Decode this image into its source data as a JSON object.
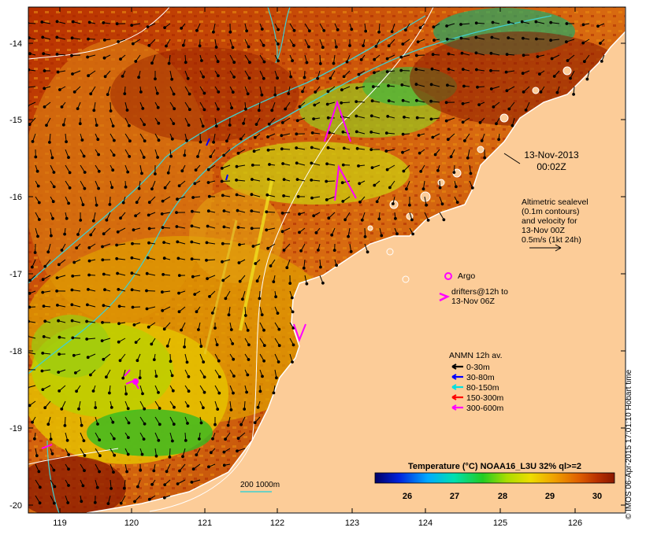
{
  "map": {
    "date_line1": "13-Nov-2013",
    "date_line2": "00:02Z",
    "altimetry_lines": [
      "Altimetric sealevel",
      "(0.1m contours)",
      "and velocity for",
      "13-Nov 00Z",
      "0.5m/s (1kt 24h)"
    ],
    "argo_label": "Argo",
    "drifters_lines": [
      "drifters@12h to",
      "13-Nov 06Z"
    ],
    "anmn_title": "ANMN 12h av.",
    "anmn_items": [
      {
        "label": "0-30m",
        "color": "#000000"
      },
      {
        "label": "30-80m",
        "color": "#0000ff"
      },
      {
        "label": "80-150m",
        "color": "#00e0e0"
      },
      {
        "label": "150-300m",
        "color": "#ff0000"
      },
      {
        "label": "300-600m",
        "color": "#ff00ff"
      }
    ],
    "depth_contours_label": "200  1000m",
    "colorbar_title": "Temperature (°C) NOAA16_L3U 32% ql>=2",
    "colorbar_ticks": [
      "26",
      "27",
      "28",
      "29",
      "30"
    ],
    "colorbar_colors": [
      "#000066",
      "#0022dd",
      "#00aaff",
      "#00e0b0",
      "#22cc22",
      "#aadd00",
      "#eedd00",
      "#f0a000",
      "#e06000",
      "#b83000",
      "#8a1800"
    ],
    "lat_labels": [
      "-14",
      "-15",
      "-16",
      "-17",
      "-18",
      "-19",
      "-20"
    ],
    "lon_labels": [
      "119",
      "120",
      "121",
      "122",
      "123",
      "124",
      "125",
      "126"
    ],
    "credit": "© IMOS 06-Apr-2015 17:01:10 Hobart time",
    "land_color": "#fccc98",
    "accent_magenta": "#ff00ff"
  }
}
